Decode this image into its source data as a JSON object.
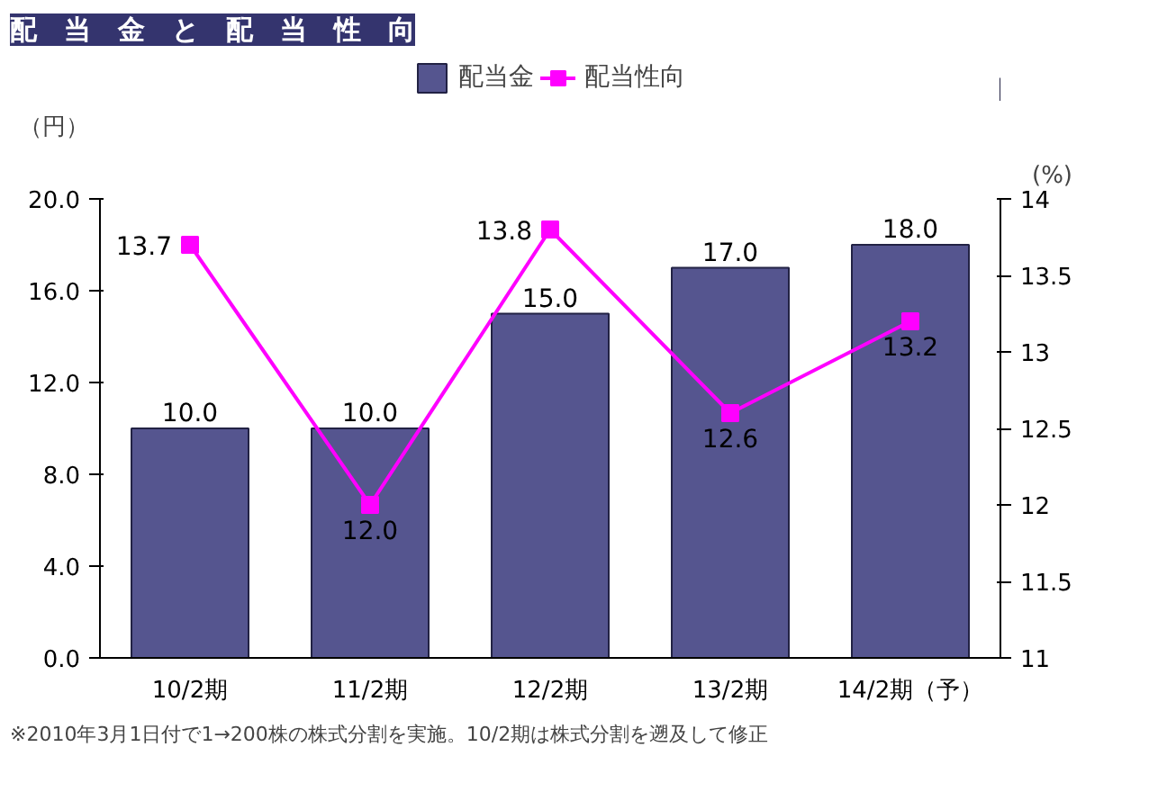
{
  "chart_data": {
    "type": "bar",
    "title": "配　当　金　と　配　当　性　向",
    "categories": [
      "10/2期",
      "11/2期",
      "12/2期",
      "13/2期",
      "14/2期（予）"
    ],
    "series": [
      {
        "name": "配当金",
        "color": "#55558f",
        "values": [
          10,
          10,
          15,
          17,
          18
        ],
        "value_labels": [
          "10.0",
          "10.0",
          "15.0",
          "17.0",
          "18.0"
        ]
      },
      {
        "name": "配当性向",
        "type": "line",
        "axis": "y2",
        "color": "#ff00ff",
        "marker": "square",
        "values": [
          13.7,
          12,
          13.8,
          12.6,
          13.2
        ],
        "value_labels": [
          "13.7",
          "12.0",
          "13.8",
          "12.6",
          "13.2"
        ]
      }
    ],
    "ylabel": "（円）",
    "y2label": "(%)",
    "ylim": [
      0,
      20
    ],
    "yticks": [
      {
        "value": 0,
        "label": "0.0"
      },
      {
        "value": 4,
        "label": "4.0"
      },
      {
        "value": 8,
        "label": "8.0"
      },
      {
        "value": 12,
        "label": "12.0"
      },
      {
        "value": 16,
        "label": "16.0"
      },
      {
        "value": 20,
        "label": "20.0"
      }
    ],
    "y2lim": [
      11,
      14
    ],
    "y2ticks": [
      11,
      11.5,
      12,
      12.5,
      13,
      13.5,
      14
    ],
    "legend": "top",
    "grid": false,
    "annotations": [
      "※2010年3月1日付で1→200株の株式分割を実施。10/2期は株式分割を遡及して修正"
    ]
  }
}
